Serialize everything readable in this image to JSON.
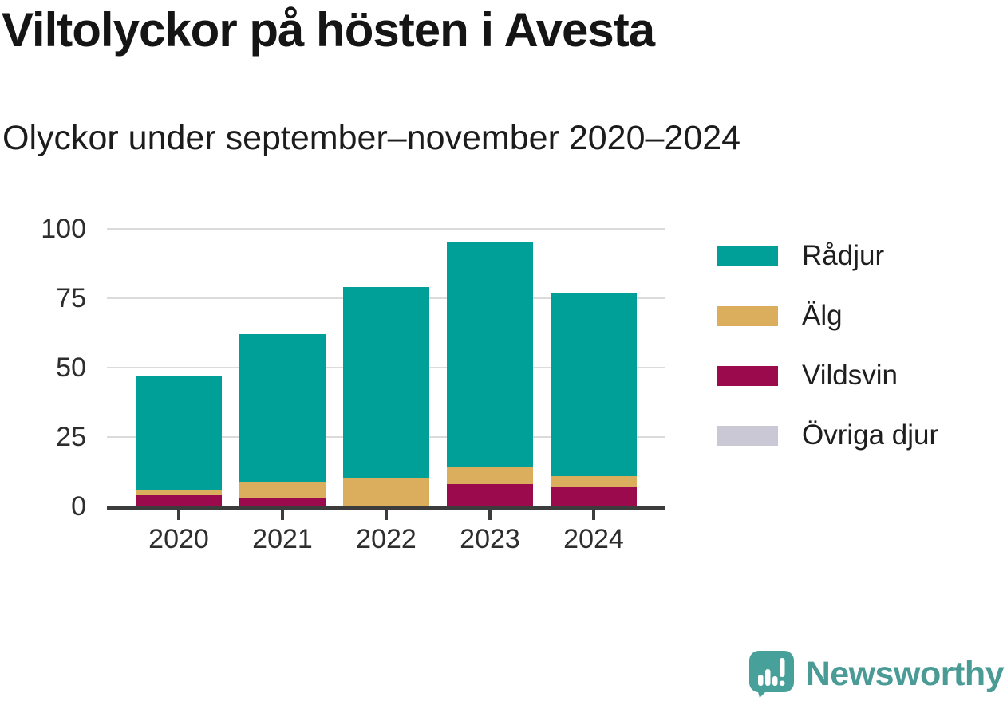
{
  "header": {
    "title": "Viltolyckor på hösten i Avesta",
    "subtitle": "Olyckor under september–november 2020–2024"
  },
  "chart_data": {
    "type": "bar",
    "stacked": true,
    "title": "Viltolyckor på hösten i Avesta",
    "subtitle": "Olyckor under september–november 2020–2024",
    "categories": [
      "2020",
      "2021",
      "2022",
      "2023",
      "2024"
    ],
    "series": [
      {
        "name": "Rådjur",
        "color": "#00a099",
        "values": [
          41,
          53,
          69,
          81,
          66
        ]
      },
      {
        "name": "Älg",
        "color": "#dbae5e",
        "values": [
          2,
          6,
          10,
          6,
          4
        ]
      },
      {
        "name": "Vildsvin",
        "color": "#9a0a4d",
        "values": [
          4,
          3,
          0,
          8,
          7
        ]
      },
      {
        "name": "Övriga djur",
        "color": "#cac8d4",
        "values": [
          0,
          0,
          0,
          0,
          0
        ]
      }
    ],
    "totals": [
      47,
      62,
      79,
      95,
      77
    ],
    "xlabel": "",
    "ylabel": "",
    "ylim": [
      0,
      100
    ],
    "yticks": [
      0,
      25,
      50,
      75,
      100
    ],
    "grid": "horizontal",
    "legend_position": "right",
    "stack_order_bottom_to_top": [
      "Övriga djur",
      "Vildsvin",
      "Älg",
      "Rådjur"
    ],
    "colors": {
      "gridline": "#dbdbdb",
      "axis": "#3c3c3c",
      "text": "#2d2d2d"
    }
  },
  "branding": {
    "name": "Newsworthy",
    "logo_icon": "speech-bubble-bar-chart-icon",
    "color": "#4a9b95",
    "logo_fill": "#47a09a"
  }
}
